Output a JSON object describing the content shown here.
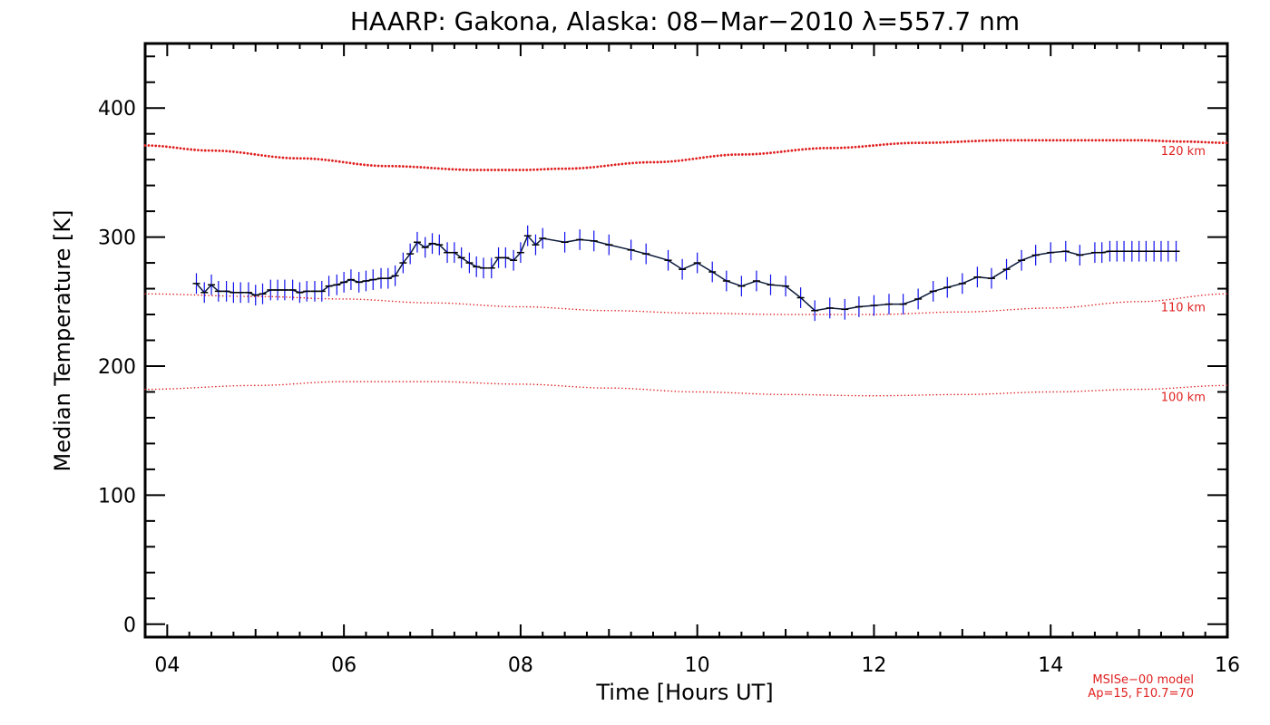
{
  "chart_data": {
    "type": "line",
    "title": "HAARP: Gakona,  Alaska: 08−Mar−2010 λ=557.7 nm",
    "xlabel": "Time [Hours UT]",
    "ylabel": "Median Temperature [K]",
    "xlim": [
      3.75,
      16.0
    ],
    "ylim": [
      -10,
      450
    ],
    "x_ticks": [
      4,
      6,
      8,
      10,
      12,
      14,
      16
    ],
    "x_tick_labels": [
      "04",
      "06",
      "08",
      "10",
      "12",
      "14",
      "16"
    ],
    "y_ticks": [
      0,
      100,
      200,
      300,
      400
    ],
    "y_tick_labels": [
      "0",
      "100",
      "200",
      "300",
      "400"
    ],
    "grid": false,
    "colors": {
      "data_line": "#0b1a3a",
      "error_bar": "#1010ee",
      "model": "#e02020",
      "axes": "#000000"
    },
    "series": [
      {
        "x": [
          4.33,
          4.42,
          4.5,
          4.58,
          4.67,
          4.75,
          4.83,
          4.92,
          5.0,
          5.08,
          5.17,
          5.25,
          5.33,
          5.42,
          5.5,
          5.58,
          5.67,
          5.75,
          5.83,
          5.92,
          6.0,
          6.08,
          6.17,
          6.25,
          6.33,
          6.42,
          6.5,
          6.58,
          6.67,
          6.75,
          6.83,
          6.92,
          7.0,
          7.08,
          7.17,
          7.25,
          7.33,
          7.42,
          7.5,
          7.58,
          7.67,
          7.75,
          7.83,
          7.92,
          8.0,
          8.08,
          8.17,
          8.25,
          8.5,
          8.67,
          8.83,
          9.0,
          9.25,
          9.42,
          9.67,
          9.83,
          10.0,
          10.17,
          10.33,
          10.5,
          10.67,
          10.83,
          11.0,
          11.17,
          11.33,
          11.5,
          11.67,
          11.83,
          12.0,
          12.17,
          12.33,
          12.5,
          12.67,
          12.83,
          13.0,
          13.17,
          13.33,
          13.5,
          13.67,
          13.83,
          14.0,
          14.17,
          14.33,
          14.5,
          14.58,
          14.67,
          14.75,
          14.83,
          14.92,
          15.0,
          15.08,
          15.17,
          15.25,
          15.33,
          15.42
        ],
        "values": [
          264,
          257,
          263,
          258,
          258,
          257,
          257,
          257,
          255,
          256,
          259,
          259,
          259,
          259,
          257,
          258,
          258,
          258,
          262,
          263,
          265,
          267,
          265,
          266,
          267,
          268,
          268,
          270,
          280,
          287,
          296,
          292,
          295,
          294,
          288,
          288,
          284,
          280,
          277,
          276,
          276,
          284,
          284,
          282,
          288,
          301,
          294,
          299,
          296,
          298,
          297,
          294,
          290,
          287,
          282,
          275,
          280,
          273,
          266,
          262,
          266,
          263,
          262,
          253,
          243,
          245,
          244,
          246,
          247,
          248,
          248,
          252,
          258,
          261,
          264,
          269,
          268,
          275,
          282,
          286,
          288,
          289,
          286,
          288,
          288,
          289,
          289,
          289,
          289,
          289,
          289,
          289,
          289,
          289,
          289
        ],
        "error": 8
      }
    ],
    "model_curves": [
      {
        "label": "120 km",
        "x": [
          3.75,
          4.5,
          5.5,
          6.5,
          7.5,
          8.0,
          8.5,
          9.5,
          10.5,
          11.5,
          12.5,
          13.5,
          14.5,
          15.0,
          15.5,
          16.0
        ],
        "values": [
          371,
          367,
          361,
          355,
          352,
          352,
          353,
          358,
          364,
          369,
          373,
          375,
          375,
          375,
          374,
          373
        ]
      },
      {
        "label": "110 km",
        "x": [
          3.75,
          5.0,
          6.0,
          7.0,
          8.0,
          9.0,
          10.0,
          11.0,
          12.0,
          13.0,
          14.0,
          15.0,
          16.0
        ],
        "values": [
          256,
          254,
          252,
          249,
          246,
          243,
          241,
          240,
          240,
          242,
          245,
          250,
          256
        ]
      },
      {
        "label": "100 km",
        "x": [
          3.75,
          5.0,
          6.0,
          7.0,
          8.0,
          9.0,
          10.0,
          11.0,
          12.0,
          13.0,
          14.0,
          15.0,
          16.0
        ],
        "values": [
          182,
          185,
          188,
          188,
          186,
          183,
          180,
          178,
          177,
          178,
          180,
          182,
          185
        ]
      }
    ],
    "annotations": [
      "MSISe−00 model",
      "Ap=15, F10.7=70"
    ]
  }
}
